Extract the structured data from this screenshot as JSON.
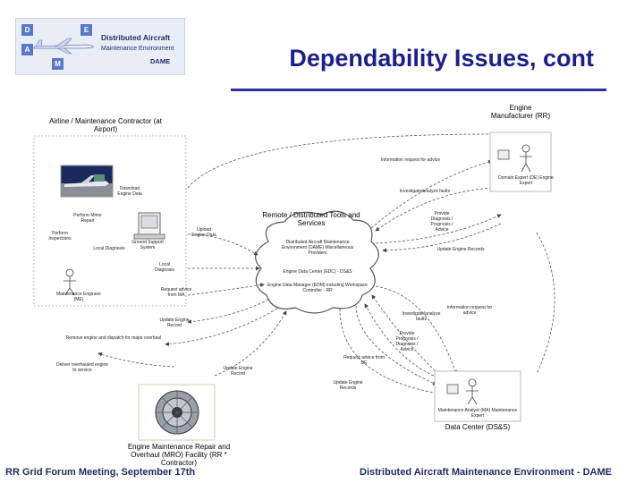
{
  "header": {
    "title": "Dependability Issues, cont",
    "logo_line1": "Distributed Aircraft",
    "logo_line2": "Maintenance Environment",
    "logo_line3": "DAME",
    "logo_letters": [
      "D",
      "A",
      "M",
      "E"
    ]
  },
  "actors": {
    "airline": "Airline / Maintenance Contractor (at Airport)",
    "engine_manufacturer": "Engine Manufacturer (RR)",
    "remote_tools": "Remote / Distributed Tools and Services",
    "data_center": "Data Center (DS&S)",
    "mro": "Engine Maintenance Repair and Overhaul (MRO) Facility (RR * Contractor)"
  },
  "cloud_items": [
    "Distributed Aircraft Maintenance Environment (DAME) Miscellaneous Providers",
    "Engine Data Center (EDC) - DS&S",
    "Engine Data Manager (EDM) including Workspace Controller - RR"
  ],
  "airline_labels": [
    "Download Engine Data",
    "Perform Minor Repair",
    "Perform Inspections",
    "Local Diagnosis",
    "Ground Support System",
    "Maintenance Engineer (ME)"
  ],
  "manufacturer_labels": [
    "Domain Expert (DE) Engine Expert"
  ],
  "data_center_labels": [
    "Maintenance Analyst (MA) Maintenance Expert"
  ],
  "flow_labels": [
    "Information request for advice",
    "Investigate/analyze faults",
    "Provide Diagnosis / Prognosis / Advice",
    "Update Engine Records",
    "Upload Engine Data",
    "Local Diagnosis",
    "Request advice from MA",
    "Update Engine Record",
    "Remove engine and dispatch for major overhaul",
    "Deliver overhauled engine to service",
    "Update Engine Record",
    "Request advice from DE",
    "Update Engine Records",
    "Information request for advice",
    "Investigate/analyze faults",
    "Provide Prognosis / Diagnosis / Advice"
  ],
  "footer": {
    "left": "RR Grid Forum Meeting, September 17th",
    "right": "Distributed Aircraft Maintenance Environment - DAME"
  },
  "colors": {
    "title": "#1b1f8c",
    "rule": "#2b2f9a",
    "footer": "#1f2a5e"
  }
}
